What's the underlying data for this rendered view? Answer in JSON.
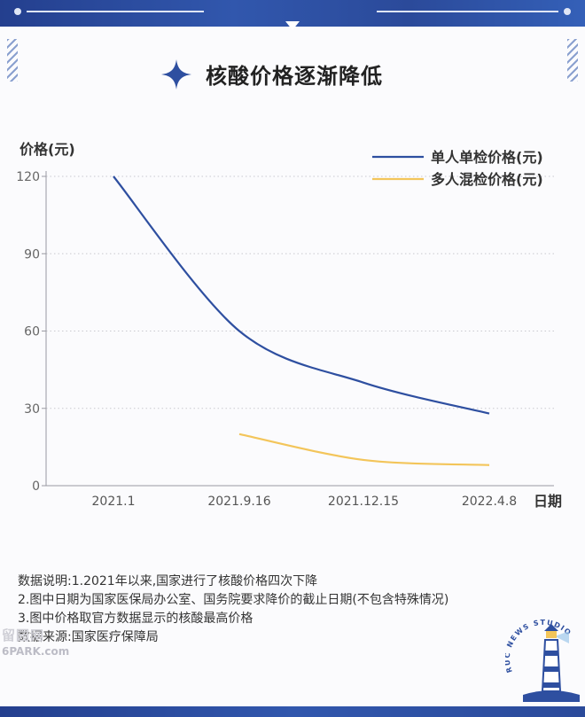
{
  "title": "核酸价格逐渐降低",
  "chart_data": {
    "type": "line",
    "ylabel": "价格(元)",
    "xlabel": "日期",
    "ylim": [
      0,
      120
    ],
    "yticks": [
      0,
      30,
      60,
      90,
      120
    ],
    "x_ticks": [
      "2021.1",
      "2021.9.16",
      "2021.12.15",
      "2022.4.8"
    ],
    "grid": "horizontal-dotted",
    "legend_position": "top-right",
    "series": [
      {
        "name": "单人单检价格(元)",
        "color": "#2e4fa0",
        "values": [
          120,
          60,
          40,
          28
        ]
      },
      {
        "name": "多人混检价格(元)",
        "color": "#f3c55a",
        "values": [
          null,
          20,
          10,
          8
        ]
      }
    ]
  },
  "notes": {
    "line1": "数据说明:1.2021年以来,国家进行了核酸价格四次下降",
    "line2": "2.图中日期为国家医保局办公室、国务院要求降价的截止日期(不包含特殊情况)",
    "line3": "3.图中价格取官方数据显示的核酸最高价格",
    "line4": "数据来源:国家医疗保障局"
  },
  "watermark": {
    "text1": "留园网",
    "text2": "6PARK.com"
  },
  "logo": {
    "text": "RUC NEWS STUDIO"
  },
  "colors": {
    "brand": "#2b4a9a",
    "accent": "#f3c55a"
  }
}
